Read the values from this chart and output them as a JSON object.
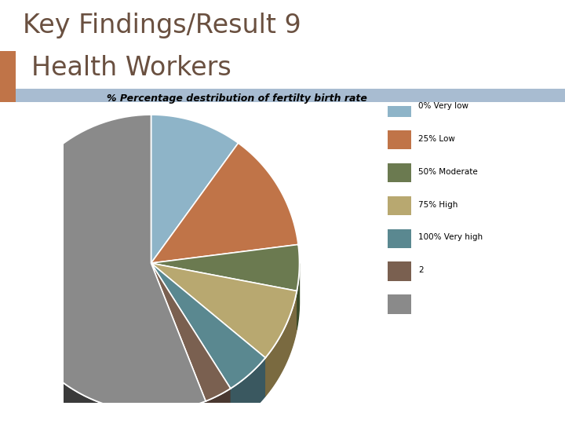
{
  "title_line1": "Key Findings/Result 9",
  "title_line2": "Health Workers",
  "chart_title": "% Percentage destribution of fertilty birth rate",
  "slices": [
    {
      "label": "0% Very low",
      "value": 10,
      "color": "#8eb4c8",
      "dark_color": "#5a7a8a"
    },
    {
      "label": "25% Low",
      "value": 13,
      "color": "#c07448",
      "dark_color": "#7a4a28"
    },
    {
      "label": "50% Moderate",
      "value": 5,
      "color": "#6b7a50",
      "dark_color": "#3a4a28"
    },
    {
      "label": "75% High",
      "value": 8,
      "color": "#b8a870",
      "dark_color": "#7a6a40"
    },
    {
      "label": "100% Very high",
      "value": 5,
      "color": "#5a8890",
      "dark_color": "#3a5860"
    },
    {
      "label": "2",
      "value": 3,
      "color": "#7a6050",
      "dark_color": "#4a3830"
    },
    {
      "label": "",
      "value": 56,
      "color": "#8a8a8a",
      "dark_color": "#3a3a3a"
    }
  ],
  "header_bg_color": "#a8bcd1",
  "header_left_color": "#c07448",
  "title_color": "#6a5040",
  "title_fontsize": 24,
  "chart_title_fontsize": 9,
  "bg_color": "#ffffff",
  "startangle": 90
}
